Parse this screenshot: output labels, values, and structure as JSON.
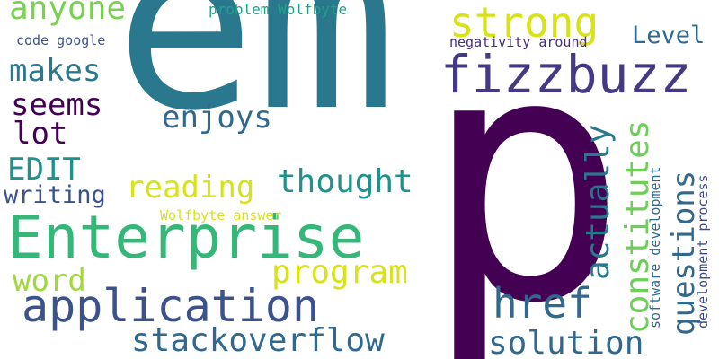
{
  "cloud": {
    "words": [
      {
        "key": "em",
        "text": "em",
        "color": "#2a788e"
      },
      {
        "key": "p",
        "text": "p",
        "color": "#440154"
      },
      {
        "key": "enterprise",
        "text": "Enterprise",
        "color": "#35b779"
      },
      {
        "key": "fizzbuzz",
        "text": "fizzbuzz",
        "color": "#443983"
      },
      {
        "key": "application",
        "text": "application",
        "color": "#3b528b"
      },
      {
        "key": "strong",
        "text": "strong",
        "color": "#d8e219"
      },
      {
        "key": "href",
        "text": "href",
        "color": "#31688e"
      },
      {
        "key": "anyone",
        "text": "anyone",
        "color": "#7ad151"
      },
      {
        "key": "thought",
        "text": "thought",
        "color": "#21918c"
      },
      {
        "key": "program",
        "text": "program",
        "color": "#d8e219"
      },
      {
        "key": "stackoverflow",
        "text": "stackoverflow",
        "color": "#31688e"
      },
      {
        "key": "solution",
        "text": "solution",
        "color": "#31688e"
      },
      {
        "key": "makes",
        "text": "makes",
        "color": "#2a788e"
      },
      {
        "key": "seems",
        "text": "seems",
        "color": "#440154"
      },
      {
        "key": "lot",
        "text": "lot",
        "color": "#440154"
      },
      {
        "key": "edit",
        "text": "EDIT",
        "color": "#21918c"
      },
      {
        "key": "enjoys",
        "text": "enjoys",
        "color": "#31688e"
      },
      {
        "key": "reading",
        "text": "reading",
        "color": "#d8e219"
      },
      {
        "key": "word",
        "text": "word",
        "color": "#a0da39"
      },
      {
        "key": "writing",
        "text": "writing",
        "color": "#3b528b"
      },
      {
        "key": "level",
        "text": "Level",
        "color": "#31688e"
      },
      {
        "key": "problem",
        "text": "problem Wolfbyte",
        "color": "#1fa187"
      },
      {
        "key": "codegoogle",
        "text": "code google",
        "color": "#3b528b"
      },
      {
        "key": "negativity",
        "text": "negativity around",
        "color": "#472d7b"
      },
      {
        "key": "wolfanswer",
        "text": "Wolfbyte answer",
        "color": "#d8e219"
      },
      {
        "key": "actually",
        "text": "actually",
        "color": "#2a788e"
      },
      {
        "key": "constitutes",
        "text": "constitutes",
        "color": "#6ece58"
      },
      {
        "key": "questions",
        "text": "questions",
        "color": "#31688e"
      },
      {
        "key": "softwaredev",
        "text": "software development",
        "color": "#31688e"
      },
      {
        "key": "devprocess",
        "text": "development process",
        "color": "#3e4989"
      }
    ]
  }
}
